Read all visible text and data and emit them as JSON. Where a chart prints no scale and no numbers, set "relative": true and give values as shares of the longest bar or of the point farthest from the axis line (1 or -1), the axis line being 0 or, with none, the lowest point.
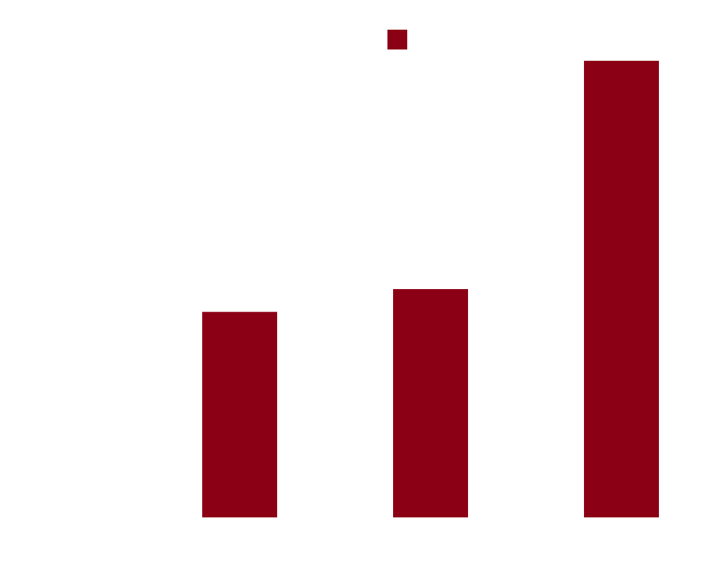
{
  "chart_data": {
    "type": "bar",
    "relative": true,
    "categories": [
      null,
      null,
      null
    ],
    "series": [
      {
        "color": "#8c0016",
        "values": [
          0.45,
          0.5,
          1
        ]
      }
    ]
  }
}
